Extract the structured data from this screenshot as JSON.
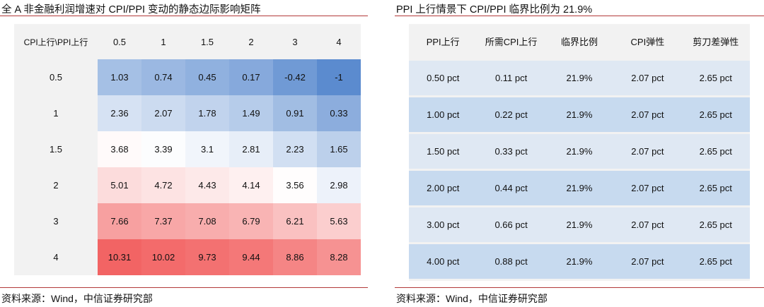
{
  "left": {
    "title": "全 A 非金融利润增速对 CPI/PPI 变动的静态边际影响矩阵",
    "table": {
      "corner": "CPI上行\\PPI上行",
      "columns": [
        0.5,
        1,
        1.5,
        2,
        3,
        4
      ],
      "rows": [
        {
          "label": 0.5,
          "cells": [
            1.03,
            0.74,
            0.45,
            0.17,
            -0.42,
            -1
          ]
        },
        {
          "label": 1,
          "cells": [
            2.36,
            2.07,
            1.78,
            1.49,
            0.91,
            0.33
          ]
        },
        {
          "label": 1.5,
          "cells": [
            3.68,
            3.39,
            3.1,
            2.81,
            2.23,
            1.65
          ]
        },
        {
          "label": 2,
          "cells": [
            5.01,
            4.72,
            4.43,
            4.14,
            3.56,
            2.98
          ]
        },
        {
          "label": 3,
          "cells": [
            7.66,
            7.37,
            7.08,
            6.79,
            6.21,
            5.63
          ]
        },
        {
          "label": 4,
          "cells": [
            10.31,
            10.02,
            9.73,
            9.44,
            8.86,
            8.28
          ]
        }
      ]
    },
    "source": "资料来源：Wind，中信证券研究部"
  },
  "right": {
    "title": "PPI 上行情景下 CPI/PPI 临界比例为 21.9%",
    "table": {
      "columns": [
        "PPI上行",
        "所需CPI上行",
        "临界比例",
        "CPI弹性",
        "剪刀差弹性"
      ],
      "rows": [
        [
          "0.50 pct",
          "0.11 pct",
          "21.9%",
          "2.07 pct",
          "2.65 pct"
        ],
        [
          "1.00 pct",
          "0.22 pct",
          "21.9%",
          "2.07 pct",
          "2.65 pct"
        ],
        [
          "1.50 pct",
          "0.33 pct",
          "21.9%",
          "2.07 pct",
          "2.65 pct"
        ],
        [
          "2.00 pct",
          "0.44 pct",
          "21.9%",
          "2.07 pct",
          "2.65 pct"
        ],
        [
          "3.00 pct",
          "0.66 pct",
          "21.9%",
          "2.07 pct",
          "2.65 pct"
        ],
        [
          "4.00 pct",
          "0.88 pct",
          "21.9%",
          "2.07 pct",
          "2.65 pct"
        ]
      ]
    },
    "source": "资料来源：Wind，中信证券研究部"
  }
}
